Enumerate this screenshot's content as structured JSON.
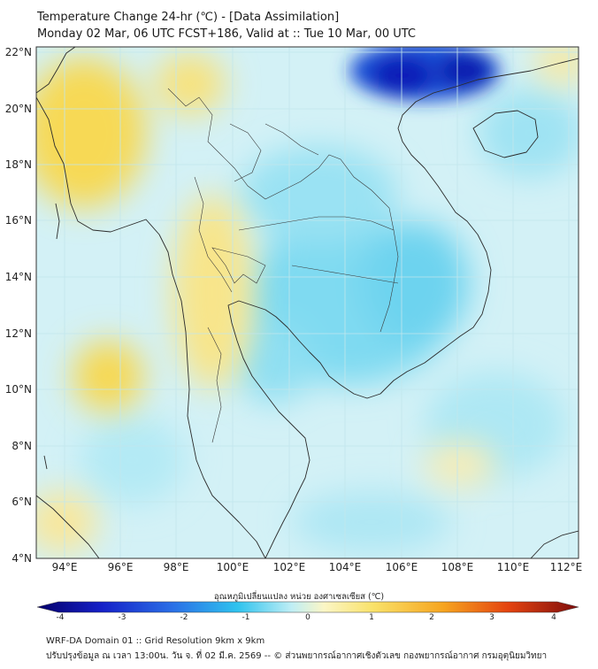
{
  "header": {
    "title_line1": "Temperature Change 24-hr (℃) - [Data Assimilation]",
    "title_line2": "Monday 02 Mar, 06 UTC FCST+186, Valid at :: Tue 10 Mar, 00 UTC"
  },
  "map": {
    "lon_range": [
      93,
      112.3
    ],
    "lat_range": [
      4,
      22.2
    ],
    "lon_ticks": [
      "94°E",
      "96°E",
      "98°E",
      "100°E",
      "102°E",
      "104°E",
      "106°E",
      "108°E",
      "110°E",
      "112°E"
    ],
    "lat_ticks": [
      "22°N",
      "20°N",
      "18°N",
      "16°N",
      "14°N",
      "12°N",
      "10°N",
      "8°N",
      "6°N",
      "4°N"
    ],
    "features": [
      {
        "name": "cold-spot-gulf-of-tonkin",
        "value": -4
      },
      {
        "name": "cool-area-cambodia",
        "value": -1
      },
      {
        "name": "cool-area-laos",
        "value": -1
      },
      {
        "name": "warm-area-myanmar-west",
        "value": 1
      },
      {
        "name": "warm-area-andaman-sea",
        "value": 1
      },
      {
        "name": "warm-area-thailand-west",
        "value": 0.5
      }
    ]
  },
  "colorbar": {
    "title": "อุณหภูมิเปลี่ยนแปลง หน่วย องศาเซลเซียส (℃)",
    "ticks": [
      "-4",
      "-3",
      "-2",
      "-1",
      "0",
      "1",
      "2",
      "3",
      "4"
    ],
    "min": -4,
    "max": 4
  },
  "footer": {
    "line1": "WRF-DA Domain 01 :: Grid Resolution 9km x 9km",
    "line2": "ปรับปรุงข้อมูล ณ เวลา 13:00น. วัน จ. ที่ 02 มี.ค. 2569 -- © ส่วนพยากรณ์อากาศเชิงตัวเลข กองพยากรณ์อากาศ กรมอุตุนิยมวิทยา"
  },
  "colors": {
    "background_field": "#d9f3f7",
    "cold_max": "#0a0a8c",
    "cool": "#5cd3ef",
    "warm": "#f7de5c",
    "warm_max": "#f2b81e",
    "coast": "#2b2b2b",
    "grid": "#b9e3ea"
  }
}
